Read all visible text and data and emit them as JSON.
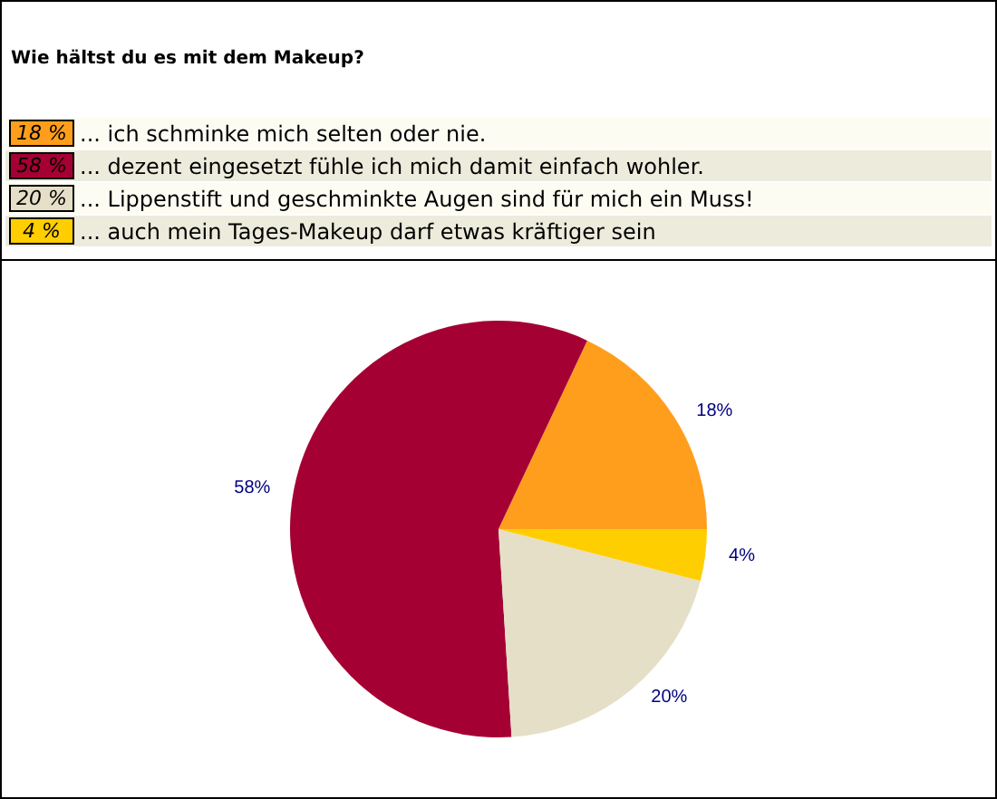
{
  "chart_data": {
    "type": "pie",
    "title": "Wie hältst du es mit dem Makeup?",
    "categories": [
      "... ich schminke mich selten oder nie.",
      "... dezent eingesetzt fühle ich mich damit einfach wohler.",
      "... Lippenstift und geschminkte Augen sind für mich ein Muss!",
      "... auch mein Tages-Makeup darf etwas kräftiger sein"
    ],
    "values": [
      18,
      58,
      20,
      4
    ],
    "colors": [
      "#ff9e1c",
      "#a50034",
      "#e5dfc8",
      "#ffce00"
    ],
    "value_labels": [
      "18%",
      "58%",
      "20%",
      "4%"
    ],
    "annotations": [
      "18 %",
      "58 %",
      "20 %",
      "4 %"
    ],
    "legend": "top"
  }
}
